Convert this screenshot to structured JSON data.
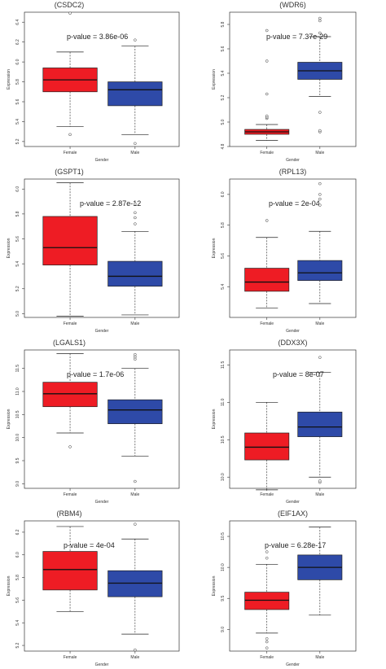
{
  "colors": {
    "female_box": "#ee1c24",
    "male_box": "#2e4aa8",
    "frame": "#333333"
  },
  "chart_data": [
    {
      "type": "box",
      "title": "(CSDC2)",
      "annotation": "p-value = 3.86e-06",
      "xlabel": "Gender",
      "ylabel": "Expression",
      "categories": [
        "Female",
        "Male"
      ],
      "ylim": [
        5.15,
        6.5
      ],
      "yticks": [
        "5.2",
        "5.4",
        "5.6",
        "5.8",
        "6.0",
        "6.2",
        "6.4"
      ],
      "ytick_values": [
        5.2,
        5.4,
        5.6,
        5.8,
        6.0,
        6.2,
        6.4
      ],
      "boxes": [
        {
          "name": "Female",
          "min": 5.35,
          "q1": 5.7,
          "median": 5.82,
          "q3": 5.94,
          "max": 6.1,
          "outliers": [
            5.27,
            6.49
          ]
        },
        {
          "name": "Male",
          "min": 5.27,
          "q1": 5.56,
          "median": 5.72,
          "q3": 5.8,
          "max": 6.16,
          "outliers": [
            5.18,
            6.22
          ]
        }
      ]
    },
    {
      "type": "box",
      "title": "(WDR6)",
      "annotation": "p-value = 7.37e-29",
      "xlabel": "Gender",
      "ylabel": "Expression",
      "categories": [
        "Female",
        "Male"
      ],
      "ylim": [
        4.8,
        5.9
      ],
      "yticks": [
        "4.8",
        "5.0",
        "5.2",
        "5.4",
        "5.6",
        "5.8"
      ],
      "ytick_values": [
        4.8,
        5.0,
        5.2,
        5.4,
        5.6,
        5.8
      ],
      "boxes": [
        {
          "name": "Female",
          "min": 4.85,
          "q1": 4.9,
          "median": 4.92,
          "q3": 4.94,
          "max": 4.98,
          "outliers": [
            5.03,
            5.04,
            5.05,
            5.23,
            5.5,
            5.75
          ]
        },
        {
          "name": "Male",
          "min": 5.21,
          "q1": 5.35,
          "median": 5.42,
          "q3": 5.49,
          "max": 5.7,
          "outliers": [
            4.92,
            4.93,
            5.08,
            5.73,
            5.83,
            5.85
          ]
        }
      ]
    },
    {
      "type": "box",
      "title": "(GSPT1)",
      "annotation": "p-value = 2.87e-12",
      "xlabel": "Gender",
      "ylabel": "Expression",
      "categories": [
        "Female",
        "Male"
      ],
      "ylim": [
        4.97,
        6.08
      ],
      "yticks": [
        "5.0",
        "5.2",
        "5.4",
        "5.6",
        "5.8",
        "6.0"
      ],
      "ytick_values": [
        5.0,
        5.2,
        5.4,
        5.6,
        5.8,
        6.0
      ],
      "boxes": [
        {
          "name": "Female",
          "min": 4.98,
          "q1": 5.39,
          "median": 5.53,
          "q3": 5.78,
          "max": 6.05,
          "outliers": []
        },
        {
          "name": "Male",
          "min": 4.99,
          "q1": 5.22,
          "median": 5.3,
          "q3": 5.42,
          "max": 5.66,
          "outliers": [
            5.72,
            5.77,
            5.81,
            5.88
          ]
        }
      ]
    },
    {
      "type": "box",
      "title": "(RPL13)",
      "annotation": "p-value = 2e-04",
      "xlabel": "Gender",
      "ylabel": "Expression",
      "categories": [
        "Female",
        "Male"
      ],
      "ylim": [
        5.2,
        6.1
      ],
      "yticks": [
        "5.4",
        "5.6",
        "5.8",
        "6.0"
      ],
      "ytick_values": [
        5.4,
        5.6,
        5.8,
        6.0
      ],
      "boxes": [
        {
          "name": "Female",
          "min": 5.26,
          "q1": 5.37,
          "median": 5.43,
          "q3": 5.52,
          "max": 5.72,
          "outliers": [
            5.83
          ]
        },
        {
          "name": "Male",
          "min": 5.29,
          "q1": 5.44,
          "median": 5.49,
          "q3": 5.57,
          "max": 5.76,
          "outliers": [
            5.93,
            5.97,
            6.0,
            6.07
          ]
        }
      ]
    },
    {
      "type": "box",
      "title": "(LGALS1)",
      "annotation": "p-value = 1.7e-06",
      "xlabel": "Gender",
      "ylabel": "Expression",
      "categories": [
        "Female",
        "Male"
      ],
      "ylim": [
        8.9,
        11.9
      ],
      "yticks": [
        "9.0",
        "9.5",
        "10.0",
        "10.5",
        "11.0",
        "11.5"
      ],
      "ytick_values": [
        9.0,
        9.5,
        10.0,
        10.5,
        11.0,
        11.5
      ],
      "boxes": [
        {
          "name": "Female",
          "min": 10.1,
          "q1": 10.67,
          "median": 10.95,
          "q3": 11.2,
          "max": 11.82,
          "outliers": [
            9.8
          ]
        },
        {
          "name": "Male",
          "min": 9.6,
          "q1": 10.3,
          "median": 10.6,
          "q3": 10.82,
          "max": 11.5,
          "outliers": [
            9.05,
            11.7,
            11.75,
            11.8
          ]
        }
      ]
    },
    {
      "type": "box",
      "title": "(DDX3X)",
      "annotation": "p-value = 8e-07",
      "xlabel": "Gender",
      "ylabel": "Expression",
      "categories": [
        "Female",
        "Male"
      ],
      "ylim": [
        9.85,
        11.7
      ],
      "yticks": [
        "10.0",
        "10.5",
        "11.0",
        "11.5"
      ],
      "ytick_values": [
        10.0,
        10.5,
        11.0,
        11.5
      ],
      "boxes": [
        {
          "name": "Female",
          "min": 9.83,
          "q1": 10.23,
          "median": 10.4,
          "q3": 10.59,
          "max": 11.0,
          "outliers": []
        },
        {
          "name": "Male",
          "min": 10.0,
          "q1": 10.54,
          "median": 10.67,
          "q3": 10.87,
          "max": 11.4,
          "outliers": [
            9.93,
            9.95,
            11.6
          ]
        }
      ]
    },
    {
      "type": "box",
      "title": "(RBM4)",
      "annotation": "p-value = 4e-04",
      "xlabel": "Gender",
      "ylabel": "Expression",
      "categories": [
        "Female",
        "Male"
      ],
      "ylim": [
        5.15,
        6.3
      ],
      "yticks": [
        "5.2",
        "5.4",
        "5.6",
        "5.8",
        "6.0",
        "6.2"
      ],
      "ytick_values": [
        5.2,
        5.4,
        5.6,
        5.8,
        6.0,
        6.2
      ],
      "boxes": [
        {
          "name": "Female",
          "min": 5.5,
          "q1": 5.69,
          "median": 5.87,
          "q3": 6.03,
          "max": 6.25,
          "outliers": []
        },
        {
          "name": "Male",
          "min": 5.3,
          "q1": 5.63,
          "median": 5.75,
          "q3": 5.86,
          "max": 6.14,
          "outliers": [
            5.16,
            6.27
          ]
        }
      ]
    },
    {
      "type": "box",
      "title": "(EIF1AX)",
      "annotation": "p-value = 6.28e-17",
      "xlabel": "Gender",
      "ylabel": "Expression",
      "categories": [
        "Female",
        "Male"
      ],
      "ylim": [
        8.65,
        10.75
      ],
      "yticks": [
        "9.0",
        "9.5",
        "10.0",
        "10.5"
      ],
      "ytick_values": [
        9.0,
        9.5,
        10.0,
        10.5
      ],
      "boxes": [
        {
          "name": "Female",
          "min": 8.94,
          "q1": 9.32,
          "median": 9.47,
          "q3": 9.6,
          "max": 10.05,
          "outliers": [
            8.7,
            8.8,
            8.85,
            10.15,
            10.25
          ]
        },
        {
          "name": "Male",
          "min": 9.23,
          "q1": 9.8,
          "median": 10.0,
          "q3": 10.2,
          "max": 10.65,
          "outliers": []
        }
      ]
    }
  ]
}
